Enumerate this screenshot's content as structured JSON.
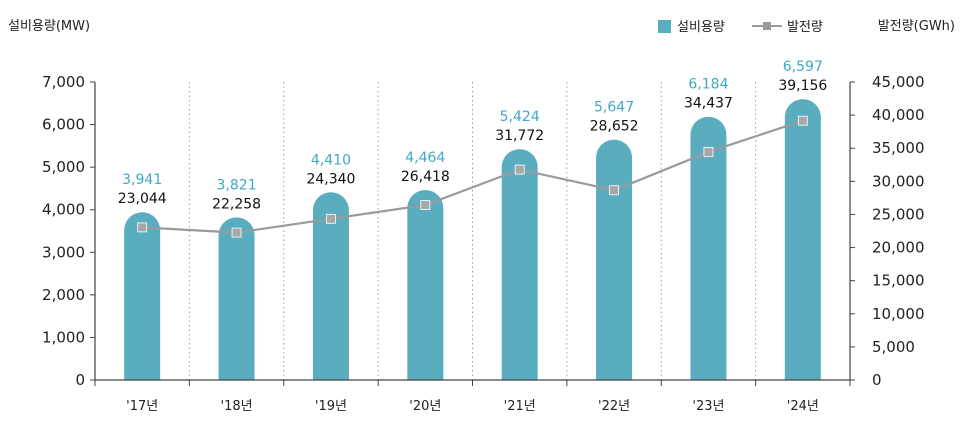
{
  "chart_data": {
    "type": "bar",
    "categories": [
      "'17년",
      "'18년",
      "'19년",
      "'20년",
      "'21년",
      "'22년",
      "'23년",
      "'24년"
    ],
    "series": [
      {
        "name": "설비용량",
        "type": "bar",
        "axis": "left",
        "values": [
          3941,
          3821,
          4410,
          4464,
          5424,
          5647,
          6184,
          6597
        ],
        "labels": [
          "3,941",
          "3,821",
          "4,410",
          "4,464",
          "5,424",
          "5,647",
          "6,184",
          "6,597"
        ]
      },
      {
        "name": "발전량",
        "type": "line",
        "axis": "right",
        "values": [
          23044,
          22258,
          24340,
          26418,
          31772,
          28652,
          34437,
          39156
        ],
        "labels": [
          "23,044",
          "22,258",
          "24,340",
          "26,418",
          "31,772",
          "28,652",
          "34,437",
          "39,156"
        ]
      }
    ],
    "ylabel_left": "설비용량(MW)",
    "ylabel_right": "발전량(GWh)",
    "ylim_left": [
      0,
      7000
    ],
    "ylim_right": [
      0,
      45000
    ],
    "yticks_left": [
      "0",
      "1,000",
      "2,000",
      "3,000",
      "4,000",
      "5,000",
      "6,000",
      "7,000"
    ],
    "yticks_right": [
      "0",
      "5,000",
      "10,000",
      "15,000",
      "20,000",
      "25,000",
      "30,000",
      "35,000",
      "40,000",
      "45,000"
    ],
    "grid": "vertical dotted",
    "legend": "top-right",
    "colors": {
      "bar": "#5aadbf",
      "line": "#9a9a9a",
      "bar_label": "#3fa9c2"
    }
  }
}
